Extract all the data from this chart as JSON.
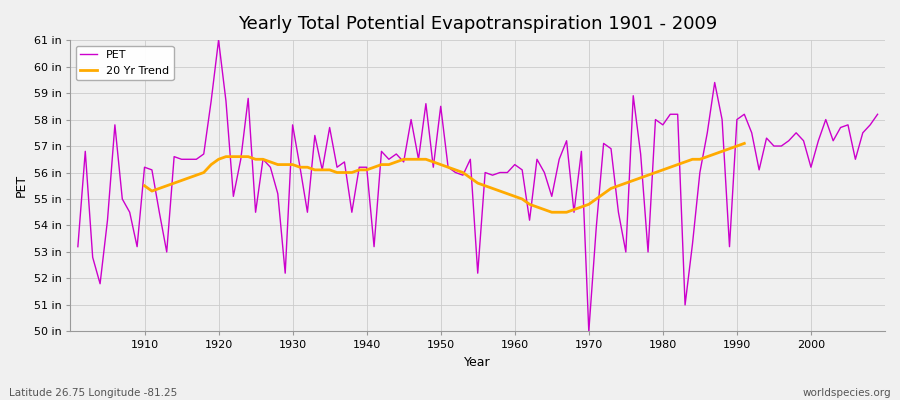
{
  "title": "Yearly Total Potential Evapotranspiration 1901 - 2009",
  "xlabel": "Year",
  "ylabel": "PET",
  "bg_color": "#f0f0f0",
  "plot_bg_color": "#f0f0f0",
  "pet_color": "#cc00cc",
  "trend_color": "#ffaa00",
  "years": [
    1901,
    1902,
    1903,
    1904,
    1905,
    1906,
    1907,
    1908,
    1909,
    1910,
    1911,
    1912,
    1913,
    1914,
    1915,
    1916,
    1917,
    1918,
    1919,
    1920,
    1921,
    1922,
    1923,
    1924,
    1925,
    1926,
    1927,
    1928,
    1929,
    1930,
    1931,
    1932,
    1933,
    1934,
    1935,
    1936,
    1937,
    1938,
    1939,
    1940,
    1941,
    1942,
    1943,
    1944,
    1945,
    1946,
    1947,
    1948,
    1949,
    1950,
    1951,
    1952,
    1953,
    1954,
    1955,
    1956,
    1957,
    1958,
    1959,
    1960,
    1961,
    1962,
    1963,
    1964,
    1965,
    1966,
    1967,
    1968,
    1969,
    1970,
    1971,
    1972,
    1973,
    1974,
    1975,
    1976,
    1977,
    1978,
    1979,
    1980,
    1981,
    1982,
    1983,
    1984,
    1985,
    1986,
    1987,
    1988,
    1989,
    1990,
    1991,
    1992,
    1993,
    1994,
    1995,
    1996,
    1997,
    1998,
    1999,
    2000,
    2001,
    2002,
    2003,
    2004,
    2005,
    2006,
    2007,
    2008,
    2009
  ],
  "pet_values": [
    53.2,
    56.8,
    52.8,
    51.8,
    54.2,
    57.8,
    55.0,
    54.5,
    53.2,
    56.2,
    56.1,
    54.5,
    53.0,
    56.6,
    56.5,
    56.5,
    56.5,
    56.7,
    58.7,
    61.0,
    58.7,
    55.1,
    56.5,
    58.8,
    54.5,
    56.5,
    56.2,
    55.2,
    52.2,
    57.8,
    56.2,
    54.5,
    57.4,
    56.1,
    57.7,
    56.2,
    56.4,
    54.5,
    56.2,
    56.2,
    53.2,
    56.8,
    56.5,
    56.7,
    56.4,
    58.0,
    56.5,
    58.6,
    56.2,
    58.5,
    56.2,
    56.0,
    55.9,
    56.5,
    52.2,
    56.0,
    55.9,
    56.0,
    56.0,
    56.3,
    56.1,
    54.2,
    56.5,
    56.0,
    55.1,
    56.5,
    57.2,
    54.5,
    56.8,
    50.0,
    53.9,
    57.1,
    56.9,
    54.5,
    53.0,
    58.9,
    56.7,
    53.0,
    58.0,
    57.8,
    58.2,
    58.2,
    51.0,
    53.3,
    56.0,
    57.5,
    59.4,
    58.0,
    53.2,
    58.0,
    58.2,
    57.5,
    56.1,
    57.3,
    57.0,
    57.0,
    57.2,
    57.5,
    57.2,
    56.2,
    57.2,
    58.0,
    57.2,
    57.7,
    57.8,
    56.5,
    57.5,
    57.8,
    58.2
  ],
  "trend_values": [
    null,
    null,
    null,
    null,
    null,
    null,
    null,
    null,
    null,
    55.5,
    55.3,
    55.4,
    55.5,
    55.6,
    55.7,
    55.8,
    55.9,
    56.0,
    56.3,
    56.5,
    56.6,
    56.6,
    56.6,
    56.6,
    56.5,
    56.5,
    56.4,
    56.3,
    56.3,
    56.3,
    56.2,
    56.2,
    56.1,
    56.1,
    56.1,
    56.0,
    56.0,
    56.0,
    56.1,
    56.1,
    56.2,
    56.3,
    56.3,
    56.4,
    56.5,
    56.5,
    56.5,
    56.5,
    56.4,
    56.3,
    56.2,
    56.1,
    56.0,
    55.8,
    55.6,
    55.5,
    55.4,
    55.3,
    55.2,
    55.1,
    55.0,
    54.8,
    54.7,
    54.6,
    54.5,
    54.5,
    54.5,
    54.6,
    54.7,
    54.8,
    55.0,
    55.2,
    55.4,
    55.5,
    55.6,
    55.7,
    55.8,
    55.9,
    56.0,
    56.1,
    56.2,
    56.3,
    56.4,
    56.5,
    56.5,
    56.6,
    56.7,
    56.8,
    56.9,
    57.0,
    57.1,
    null,
    null,
    null,
    null,
    null,
    null,
    null,
    null,
    null,
    null,
    null,
    null,
    null,
    null,
    null,
    null,
    null,
    null
  ],
  "ylim": [
    50,
    61
  ],
  "ytick_labels": [
    "50 in",
    "51 in",
    "52 in",
    "53 in",
    "54 in",
    "55 in",
    "56 in",
    "57 in",
    "58 in",
    "59 in",
    "60 in",
    "61 in"
  ],
  "ytick_values": [
    50,
    51,
    52,
    53,
    54,
    55,
    56,
    57,
    58,
    59,
    60,
    61
  ],
  "xticks": [
    1910,
    1920,
    1930,
    1940,
    1950,
    1960,
    1970,
    1980,
    1990,
    2000
  ],
  "footer_left": "Latitude 26.75 Longitude -81.25",
  "footer_right": "worldspecies.org",
  "pet_linewidth": 1.0,
  "trend_linewidth": 2.0,
  "grid_color": "#cccccc",
  "spine_color": "#999999",
  "title_fontsize": 13,
  "axis_fontsize": 9,
  "tick_fontsize": 8,
  "footer_fontsize": 7.5
}
